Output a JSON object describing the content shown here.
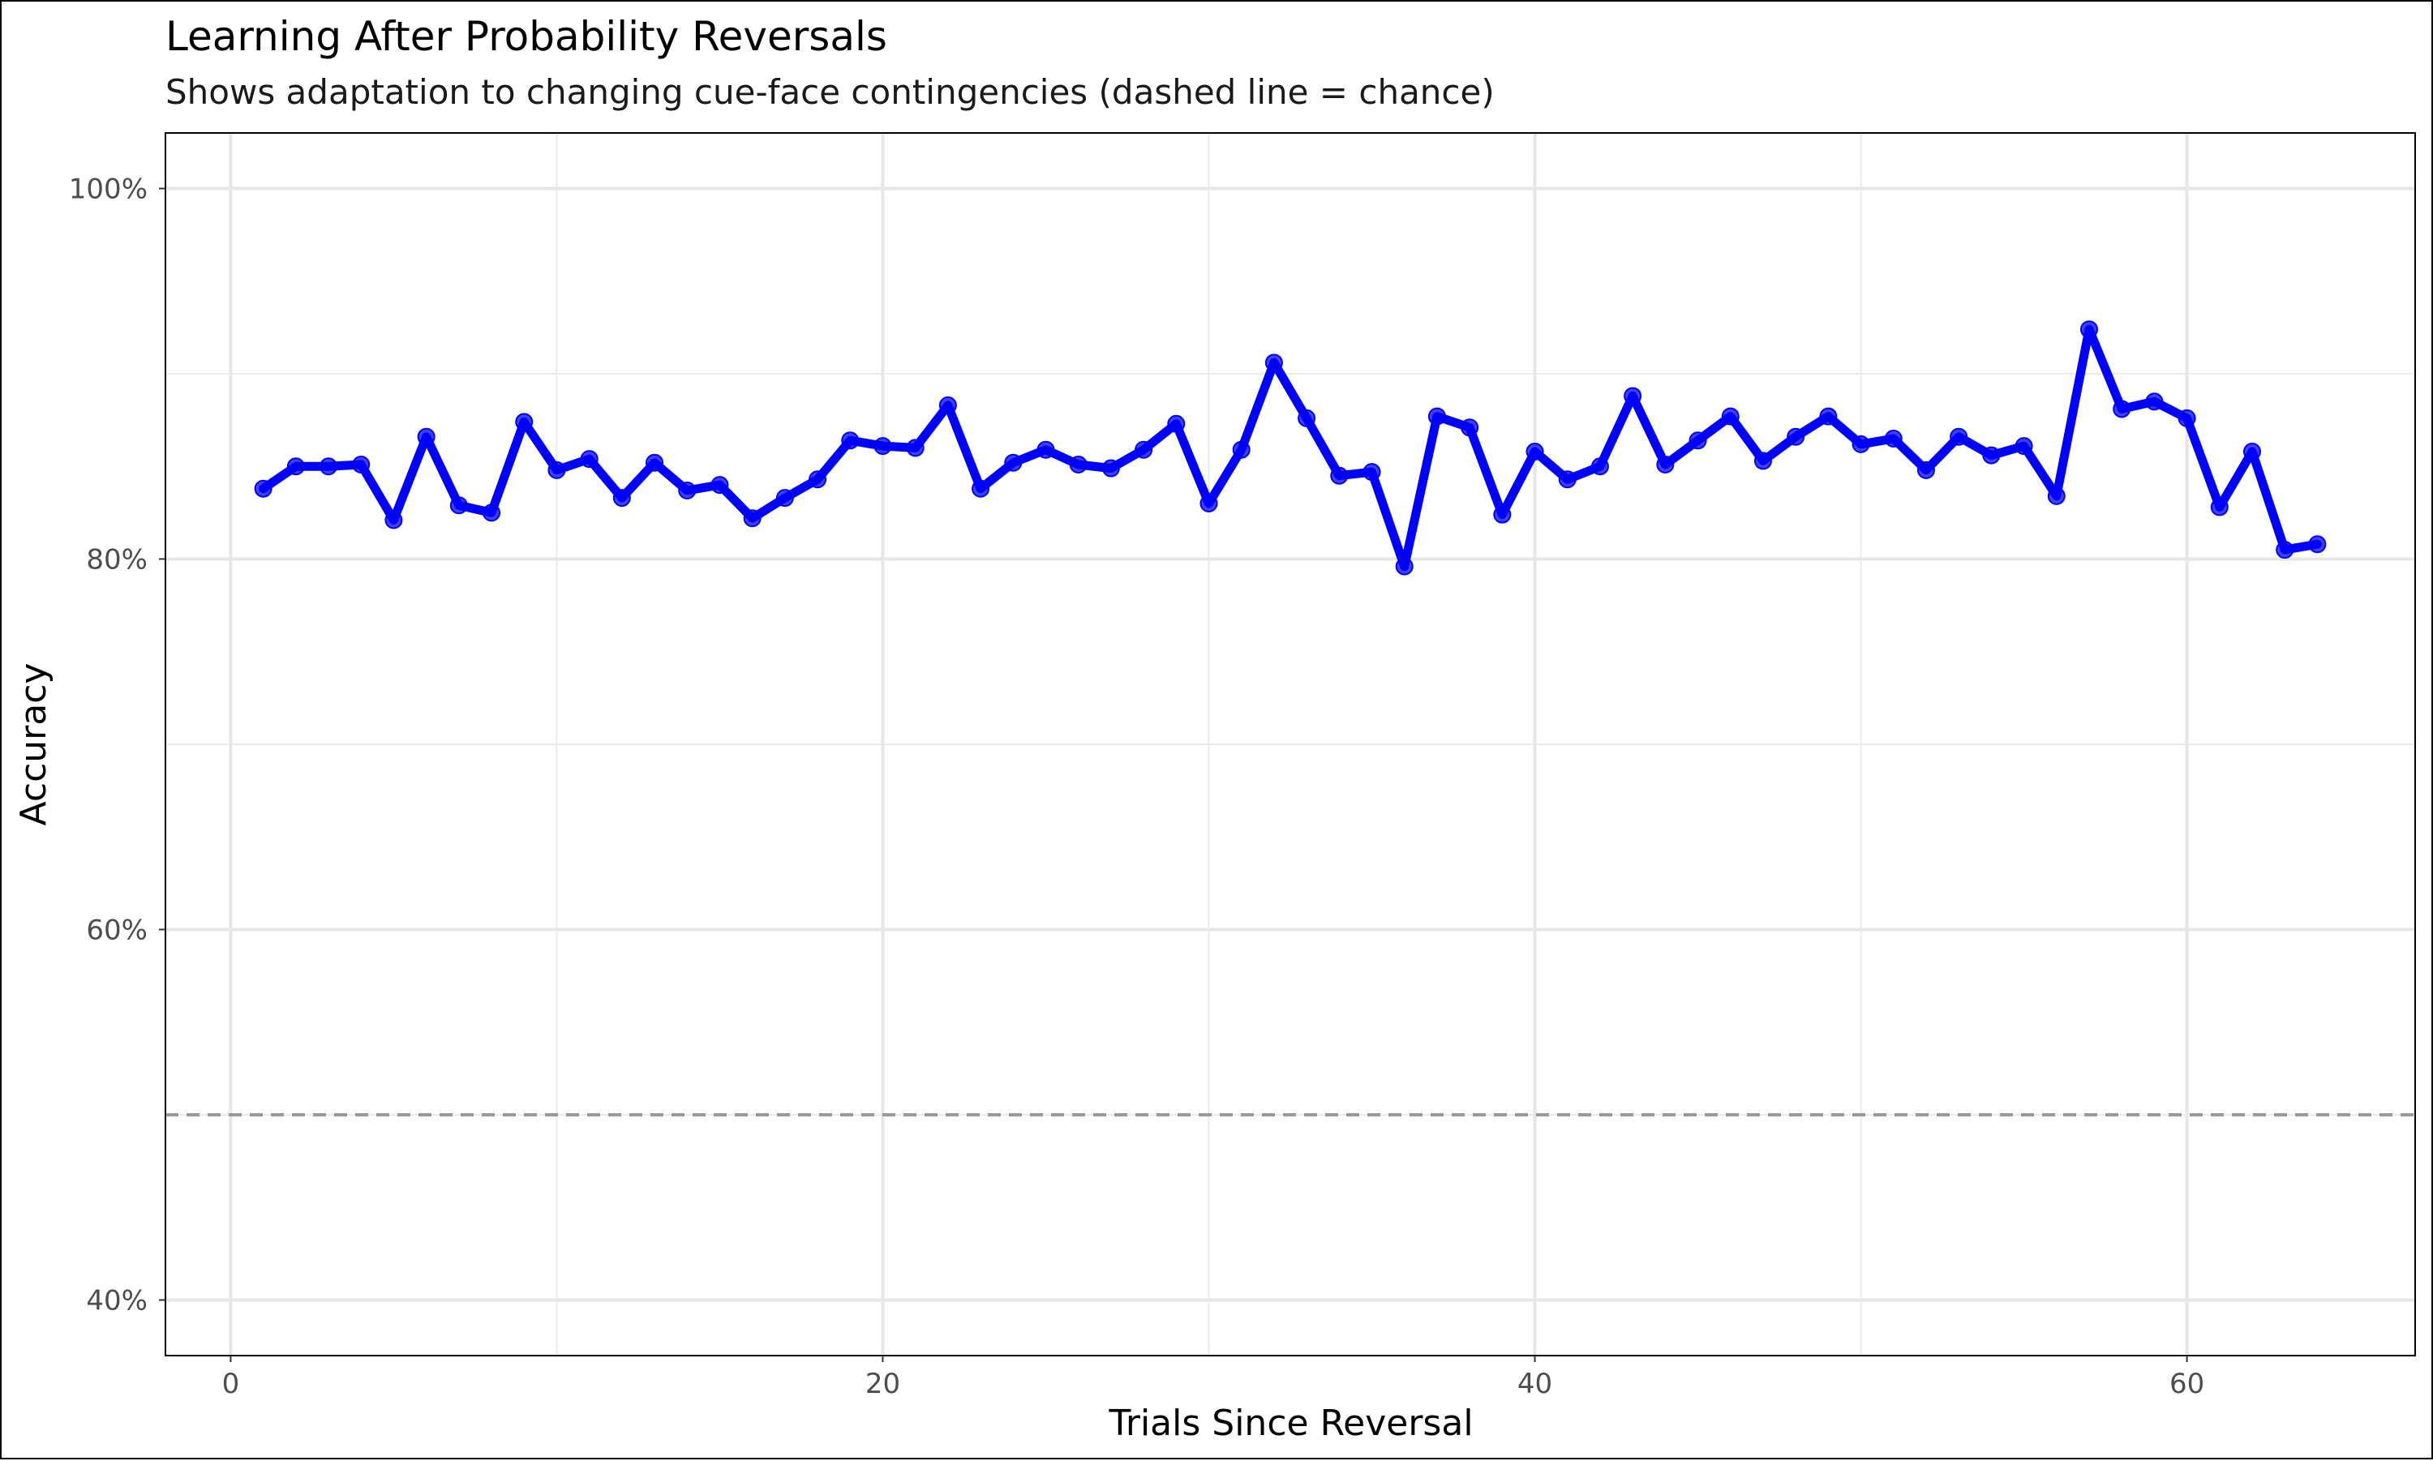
{
  "chart_data": {
    "type": "line",
    "title": "Learning After Probability Reversals",
    "subtitle": "Shows adaptation to changing cue-face contingencies (dashed line = chance)",
    "xlabel": "Trials Since Reversal",
    "ylabel": "Accuracy",
    "xlim": [
      -2,
      67
    ],
    "ylim": [
      0.37,
      1.03
    ],
    "x_ticks": [
      0,
      20,
      40,
      60
    ],
    "x_tick_labels": [
      "0",
      "20",
      "40",
      "60"
    ],
    "x_minor_ticks": [
      10,
      30,
      50
    ],
    "y_ticks": [
      0.4,
      0.6,
      0.8,
      1.0
    ],
    "y_tick_labels": [
      "40%",
      "60%",
      "80%",
      "100%"
    ],
    "y_minor_ticks": [
      0.5,
      0.7,
      0.9
    ],
    "grid": true,
    "chance_level": 0.5,
    "line_color": "#0000ff",
    "chance_color": "#999999",
    "x": [
      1,
      2,
      3,
      4,
      5,
      6,
      7,
      8,
      9,
      10,
      11,
      12,
      13,
      14,
      15,
      16,
      17,
      18,
      19,
      20,
      21,
      22,
      23,
      24,
      25,
      26,
      27,
      28,
      29,
      30,
      31,
      32,
      33,
      34,
      35,
      36,
      37,
      38,
      39,
      40,
      41,
      42,
      43,
      44,
      45,
      46,
      47,
      48,
      49,
      50,
      51,
      52,
      53,
      54,
      55,
      56,
      57,
      58,
      59,
      60,
      61,
      62,
      63,
      64
    ],
    "y": [
      0.838,
      0.85,
      0.85,
      0.851,
      0.821,
      0.866,
      0.829,
      0.825,
      0.874,
      0.848,
      0.854,
      0.833,
      0.852,
      0.837,
      0.84,
      0.822,
      0.833,
      0.843,
      0.864,
      0.861,
      0.86,
      0.883,
      0.838,
      0.852,
      0.859,
      0.851,
      0.849,
      0.859,
      0.873,
      0.83,
      0.859,
      0.906,
      0.876,
      0.845,
      0.847,
      0.796,
      0.877,
      0.871,
      0.824,
      0.858,
      0.843,
      0.85,
      0.888,
      0.851,
      0.864,
      0.877,
      0.853,
      0.866,
      0.877,
      0.862,
      0.865,
      0.848,
      0.866,
      0.856,
      0.861,
      0.834,
      0.924,
      0.881,
      0.885,
      0.876,
      0.828,
      0.858,
      0.805,
      0.808
    ]
  }
}
